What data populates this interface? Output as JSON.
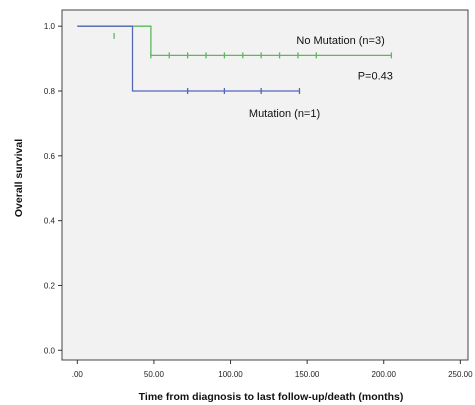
{
  "chart_data": {
    "type": "line",
    "title": "",
    "xlabel": "Time from diagnosis to last follow-up/death (months)",
    "ylabel": "Overall survival",
    "xlim": [
      -10,
      255
    ],
    "ylim": [
      -0.03,
      1.05
    ],
    "xticks": [
      0,
      50,
      100,
      150,
      200,
      250
    ],
    "xtick_labels": [
      ".00",
      "50.00",
      "100.00",
      "150.00",
      "200.00",
      "250.00"
    ],
    "yticks": [
      0.0,
      0.2,
      0.4,
      0.6,
      0.8,
      1.0
    ],
    "ytick_labels": [
      "0.0",
      "0.2",
      "0.4",
      "0.6",
      "0.8",
      "1.0"
    ],
    "grid": false,
    "plot_background": "#f2f2f2",
    "series": [
      {
        "name": "No Mutation (n=3)",
        "color": "#5cb85c",
        "steps": [
          [
            0,
            1.0
          ],
          [
            48,
            1.0
          ],
          [
            48,
            0.91
          ],
          [
            205,
            0.91
          ]
        ],
        "censored": [
          [
            24,
            0.97
          ],
          [
            48,
            0.91
          ],
          [
            60,
            0.91
          ],
          [
            72,
            0.91
          ],
          [
            84,
            0.91
          ],
          [
            96,
            0.91
          ],
          [
            108,
            0.91
          ],
          [
            120,
            0.91
          ],
          [
            132,
            0.91
          ],
          [
            144,
            0.91
          ],
          [
            156,
            0.91
          ],
          [
            205,
            0.91
          ]
        ]
      },
      {
        "name": "Mutation (n=1)",
        "color": "#5566bb",
        "steps": [
          [
            0,
            1.0
          ],
          [
            36,
            1.0
          ],
          [
            36,
            0.8
          ],
          [
            145,
            0.8
          ]
        ],
        "censored": [
          [
            72,
            0.8
          ],
          [
            96,
            0.8
          ],
          [
            120,
            0.8
          ],
          [
            145,
            0.8
          ]
        ]
      }
    ],
    "annotations": [
      {
        "text": "No Mutation (n=3)",
        "x": 143,
        "y": 0.945,
        "series": 0
      },
      {
        "text": "Mutation (n=1)",
        "x": 112,
        "y": 0.72,
        "series": 1
      },
      {
        "text": "P=0.43",
        "x": 183,
        "y": 0.835
      }
    ]
  }
}
